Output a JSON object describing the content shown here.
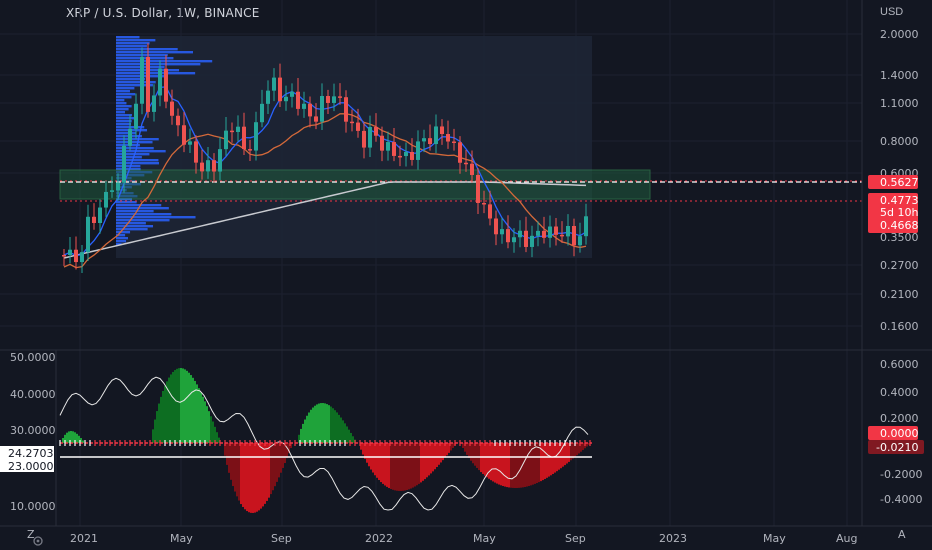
{
  "header": {
    "symbol_title": "XRP / U.S. Dollar, 1W, BINANCE",
    "currency": "USD"
  },
  "price_axis": {
    "labels": [
      "2.0000",
      "1.4000",
      "1.1000",
      "0.8000",
      "0.6000",
      "0.2700",
      "0.2100",
      "0.1600"
    ],
    "tags": [
      {
        "text": "0.5627",
        "color": "#f23645",
        "text_color": "#ffffff"
      },
      {
        "text": "0.4773",
        "color": "#f23645",
        "text_color": "#ffffff"
      },
      {
        "text": "5d 10h",
        "color": "#f23645",
        "text_color": "#ffffff"
      },
      {
        "text": "0.4668",
        "color": "#f23645",
        "text_color": "#ffffff"
      },
      {
        "text": "0.3500",
        "color": "#131722",
        "text_color": "#b2b5be"
      }
    ]
  },
  "indicator_left_axis": {
    "labels": [
      "50.0000",
      "40.0000",
      "30.0000",
      "10.0000"
    ],
    "tags": [
      {
        "text": "24.2703",
        "color": "#ffffff",
        "text_color": "#131722"
      },
      {
        "text": "23.0000",
        "color": "#ffffff",
        "text_color": "#131722"
      }
    ]
  },
  "indicator_right_axis": {
    "labels": [
      "0.6000",
      "0.4000",
      "0.2000",
      "-0.2000",
      "-0.4000"
    ],
    "tags": [
      {
        "text": "0.0000",
        "color": "#f23645",
        "text_color": "#ffffff"
      },
      {
        "text": "-0.0210",
        "color": "#801922",
        "text_color": "#ffffff"
      }
    ]
  },
  "time_axis": {
    "labels": [
      "2021",
      "May",
      "Sep",
      "2022",
      "May",
      "Sep",
      "2023",
      "May",
      "Aug"
    ]
  },
  "corner_buttons": {
    "zoom": "Z",
    "auto": "A",
    "settings_icon": "gear-icon"
  },
  "colors": {
    "background": "#131722",
    "up": "#26a69a",
    "down": "#ef5350",
    "volume_profile": "#2962ff",
    "zone": "#1e5a3a",
    "ema_fast": "#2962ff",
    "ema_mid": "#e0703a",
    "ema_slow": "#d1d4dc"
  }
}
